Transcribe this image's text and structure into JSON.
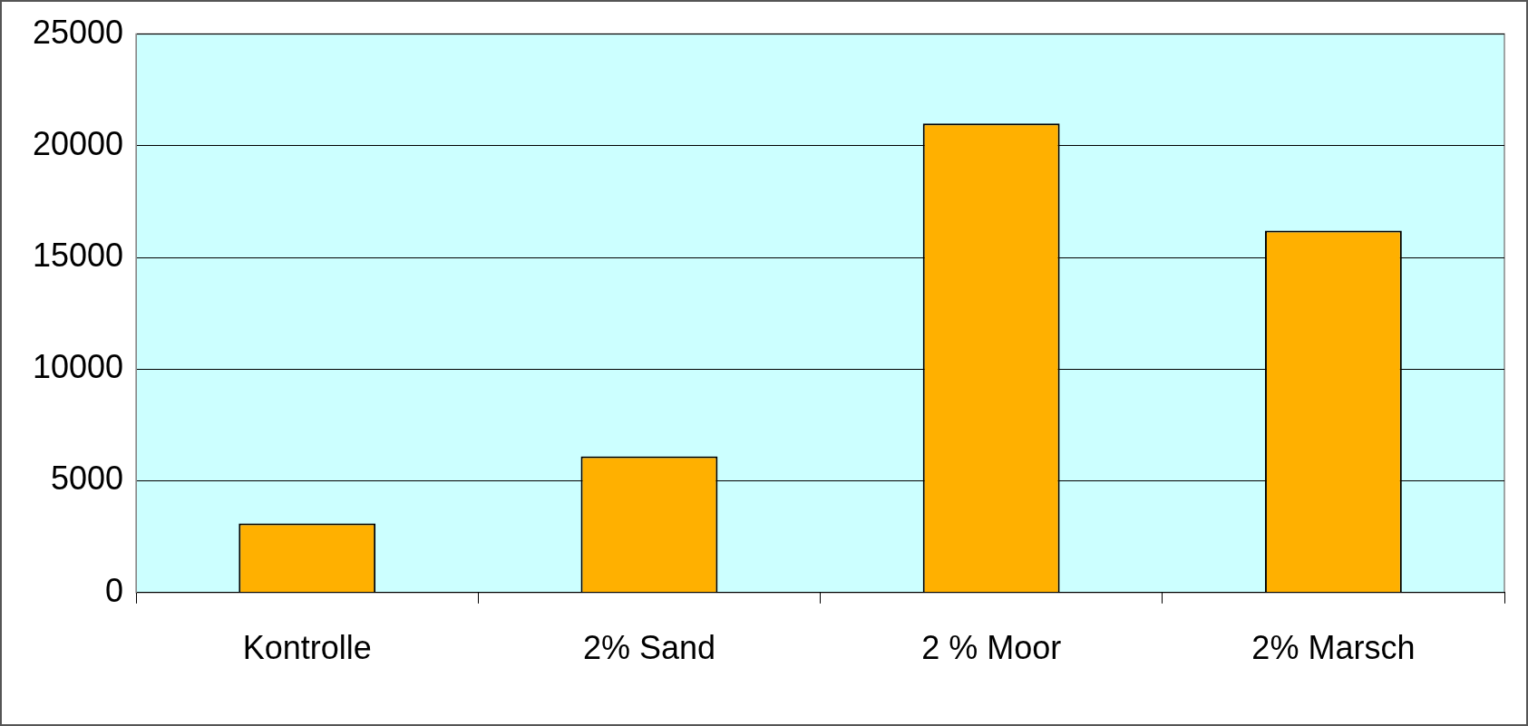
{
  "chart_data": {
    "type": "bar",
    "categories": [
      "Kontrolle",
      "2% Sand",
      "2 % Moor",
      "2% Marsch"
    ],
    "values": [
      3100,
      6100,
      21000,
      16200
    ],
    "color": "#ffb000",
    "ylim": [
      0,
      25000
    ],
    "yticks": [
      0,
      5000,
      10000,
      15000,
      20000,
      25000
    ],
    "grid": "y",
    "legend": false
  }
}
